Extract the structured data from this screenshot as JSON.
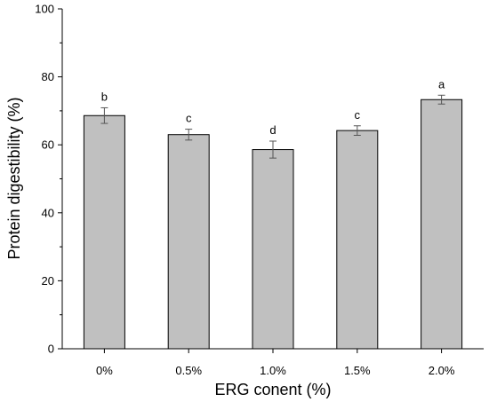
{
  "chart_data": {
    "type": "bar",
    "categories": [
      "0%",
      "0.5%",
      "1.0%",
      "1.5%",
      "2.0%"
    ],
    "values": [
      68.6,
      63.0,
      58.6,
      64.2,
      73.3
    ],
    "errors": [
      2.3,
      1.6,
      2.5,
      1.4,
      1.3
    ],
    "significance_labels": [
      "b",
      "c",
      "d",
      "c",
      "a"
    ],
    "xlabel": "ERG conent (%)",
    "ylabel": "Protein digestibility (%)",
    "ylim": [
      0,
      100
    ],
    "yticks": [
      "0",
      "20",
      "40",
      "60",
      "80",
      "100"
    ],
    "grid": false,
    "colors": {
      "bar_fill": "#c0c0c0",
      "bar_stroke": "#000000",
      "axis": "#000000",
      "errorbar": "#555555"
    }
  }
}
